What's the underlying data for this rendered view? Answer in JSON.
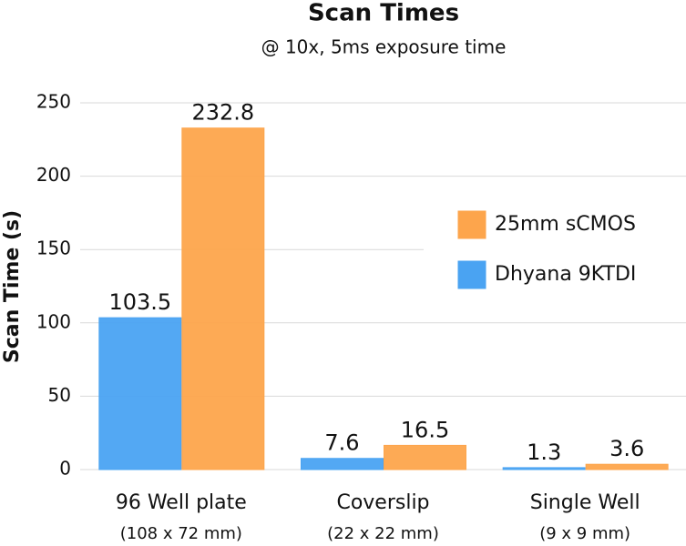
{
  "chart_data": {
    "type": "bar",
    "title": "Scan Times",
    "subtitle": "@ 10x, 5ms exposure time",
    "y_label": "Scan Time (s)",
    "categories": [
      "96 Well plate",
      "Coverslip",
      "Single Well"
    ],
    "category_details": [
      "(108 x 72 mm)",
      "(22 x 22 mm)",
      "(9 x 9 mm)"
    ],
    "series": [
      {
        "name": "Dhyana 9KTDI",
        "color": "#4aa3f2",
        "values": [
          103.5,
          7.6,
          1.3
        ]
      },
      {
        "name": "25mm sCMOS",
        "color": "#fda54c",
        "values": [
          232.8,
          16.5,
          3.6
        ]
      }
    ],
    "ylim": [
      0,
      250
    ],
    "yticks": [
      0,
      50,
      100,
      150,
      200,
      250
    ],
    "grid": true
  }
}
